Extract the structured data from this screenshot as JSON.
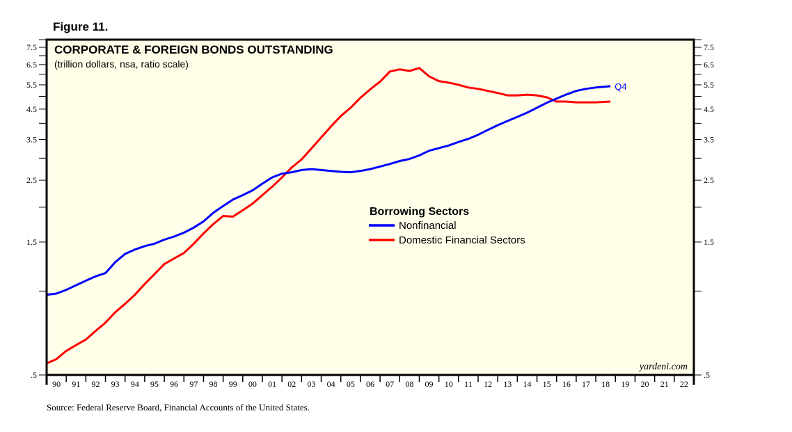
{
  "figure_label": "Figure 11.",
  "source_note": "Source: Federal Reserve Board, Financial Accounts of the United States.",
  "watermark": "yardeni.com",
  "colors": {
    "plot_background": "#fffee8",
    "nonfinancial": "#0000ff",
    "financial": "#ff0000",
    "axis": "#000000"
  },
  "chart_data": {
    "type": "line",
    "title": "CORPORATE & FOREIGN BONDS OUTSTANDING",
    "subtitle": "(trillion dollars, nsa, ratio scale)",
    "xlabel": "",
    "ylabel": "",
    "y_scale": "log",
    "ylim": [
      0.5,
      7.5
    ],
    "xlim": [
      1990,
      2023
    ],
    "y_tick_labels": [
      {
        "value": 7.5,
        "label": "7.5"
      },
      {
        "value": 6.5,
        "label": "6.5"
      },
      {
        "value": 5.5,
        "label": "5.5"
      },
      {
        "value": 4.5,
        "label": "4.5"
      },
      {
        "value": 3.5,
        "label": "3.5"
      },
      {
        "value": 2.5,
        "label": "2.5"
      },
      {
        "value": 1.5,
        "label": "1.5"
      },
      {
        "value": 0.5,
        "label": ".5"
      }
    ],
    "y_minor_ticks": [
      7,
      6,
      5,
      4,
      3,
      2,
      1
    ],
    "x_tick_labels": [
      "90",
      "91",
      "92",
      "93",
      "94",
      "95",
      "96",
      "97",
      "98",
      "99",
      "00",
      "01",
      "02",
      "03",
      "04",
      "05",
      "06",
      "07",
      "08",
      "09",
      "10",
      "11",
      "12",
      "13",
      "14",
      "15",
      "16",
      "17",
      "18",
      "19",
      "20",
      "21",
      "22"
    ],
    "grid": false,
    "legend": {
      "title": "Borrowing Sectors",
      "placement": "center",
      "entries": [
        "Nonfinancial",
        "Domestic Financial Sectors"
      ]
    },
    "end_annotation": {
      "series": "Nonfinancial",
      "text": "Q4"
    },
    "x": [
      1990.0,
      1990.5,
      1991.0,
      1991.5,
      1992.0,
      1992.5,
      1993.0,
      1993.5,
      1994.0,
      1994.5,
      1995.0,
      1995.5,
      1996.0,
      1996.5,
      1997.0,
      1997.5,
      1998.0,
      1998.5,
      1999.0,
      1999.5,
      2000.0,
      2000.5,
      2001.0,
      2001.5,
      2002.0,
      2002.5,
      2003.0,
      2003.5,
      2004.0,
      2004.5,
      2005.0,
      2005.5,
      2006.0,
      2006.5,
      2007.0,
      2007.5,
      2008.0,
      2008.5,
      2009.0,
      2009.5,
      2010.0,
      2010.5,
      2011.0,
      2011.5,
      2012.0,
      2012.5,
      2013.0,
      2013.5,
      2014.0,
      2014.5,
      2015.0,
      2015.5,
      2016.0,
      2016.5,
      2017.0,
      2017.5,
      2018.0,
      2018.75
    ],
    "series": [
      {
        "name": "Nonfinancial",
        "color": "#0000ff",
        "values": [
          0.97,
          0.98,
          1.01,
          1.05,
          1.09,
          1.13,
          1.16,
          1.27,
          1.36,
          1.41,
          1.45,
          1.48,
          1.53,
          1.57,
          1.62,
          1.69,
          1.78,
          1.91,
          2.02,
          2.13,
          2.21,
          2.3,
          2.43,
          2.56,
          2.64,
          2.67,
          2.72,
          2.74,
          2.72,
          2.7,
          2.68,
          2.67,
          2.7,
          2.74,
          2.8,
          2.86,
          2.93,
          2.98,
          3.07,
          3.19,
          3.26,
          3.33,
          3.43,
          3.52,
          3.64,
          3.79,
          3.94,
          4.08,
          4.22,
          4.37,
          4.55,
          4.74,
          4.91,
          5.08,
          5.23,
          5.32,
          5.38,
          5.44
        ]
      },
      {
        "name": "Domestic Financial Sectors",
        "color": "#ff0000",
        "values": [
          0.55,
          0.57,
          0.61,
          0.64,
          0.67,
          0.72,
          0.77,
          0.84,
          0.9,
          0.97,
          1.06,
          1.15,
          1.25,
          1.31,
          1.37,
          1.48,
          1.61,
          1.74,
          1.86,
          1.85,
          1.95,
          2.06,
          2.21,
          2.37,
          2.56,
          2.78,
          2.97,
          3.25,
          3.56,
          3.9,
          4.25,
          4.55,
          4.94,
          5.3,
          5.65,
          6.14,
          6.25,
          6.17,
          6.32,
          5.9,
          5.67,
          5.6,
          5.5,
          5.38,
          5.32,
          5.23,
          5.14,
          5.04,
          5.04,
          5.07,
          5.04,
          4.96,
          4.79,
          4.79,
          4.76,
          4.76,
          4.76,
          4.79
        ]
      }
    ]
  }
}
